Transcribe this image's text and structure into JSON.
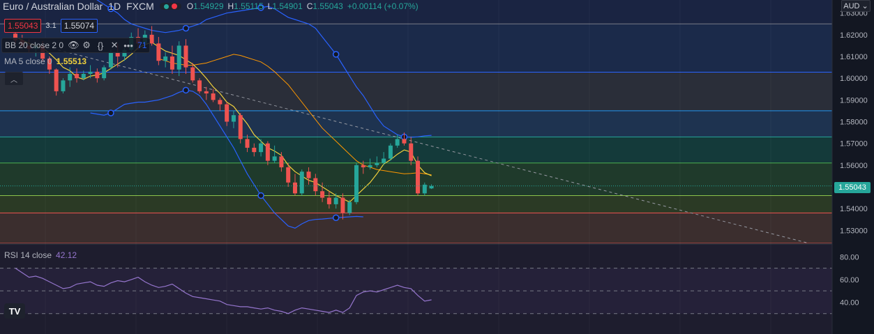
{
  "header": {
    "symbol": "Euro / Australian Dollar",
    "interval": "1D",
    "exchange": "FXCM",
    "open_label": "O",
    "open": "1.54929",
    "high_label": "H",
    "high": "1.55115",
    "low_label": "L",
    "low": "1.54901",
    "close_label": "C",
    "close": "1.55043",
    "change": "+0.00114 (+0.07%)"
  },
  "trade": {
    "sell": "1.55043",
    "spread": "3.1",
    "buy": "1.55074"
  },
  "indicators": {
    "bb": {
      "label": "BB 20 close 2 0",
      "partial_value": "71"
    },
    "ma": {
      "label": "MA 5 close 0",
      "value": "1.55513"
    },
    "rsi": {
      "label": "RSI 14 close",
      "value": "42.12"
    }
  },
  "currency": "AUD",
  "last_price": "1.55043",
  "logo_text": "TV",
  "price_axis": {
    "ticks": [
      "1.63000",
      "1.62000",
      "1.61000",
      "1.60000",
      "1.59000",
      "1.58000",
      "1.57000",
      "1.56000",
      "1.55000",
      "1.54000",
      "1.53000"
    ],
    "values": [
      1.63,
      1.62,
      1.61,
      1.6,
      1.59,
      1.58,
      1.57,
      1.56,
      1.55,
      1.54,
      1.53
    ]
  },
  "rsi_axis": {
    "ticks": [
      "80.00",
      "60.00",
      "40.00"
    ],
    "values": [
      80,
      60,
      40
    ]
  },
  "colors": {
    "up": "#26a69a",
    "down": "#ef5350",
    "bb": "#2962ff",
    "ma": "#f0d03c",
    "rsi": "#9575cd",
    "bg": "#131722"
  },
  "chart_data": {
    "type": "candlestick",
    "candles": [
      [
        1.6205,
        1.6235,
        1.616,
        1.6175
      ],
      [
        1.6175,
        1.62,
        1.614,
        1.615
      ],
      [
        1.615,
        1.618,
        1.612,
        1.6135
      ],
      [
        1.6135,
        1.6165,
        1.61,
        1.615
      ],
      [
        1.615,
        1.617,
        1.608,
        1.609
      ],
      [
        1.609,
        1.61,
        1.602,
        1.604
      ],
      [
        1.604,
        1.6045,
        1.592,
        1.594
      ],
      [
        1.594,
        1.6,
        1.593,
        1.599
      ],
      [
        1.599,
        1.605,
        1.596,
        1.602
      ],
      [
        1.602,
        1.6045,
        1.598,
        1.6
      ],
      [
        1.6,
        1.6035,
        1.599,
        1.602
      ],
      [
        1.602,
        1.606,
        1.6,
        1.603
      ],
      [
        1.603,
        1.6045,
        1.598,
        1.6
      ],
      [
        1.6,
        1.606,
        1.599,
        1.605
      ],
      [
        1.605,
        1.613,
        1.604,
        1.612
      ],
      [
        1.612,
        1.616,
        1.605,
        1.61
      ],
      [
        1.61,
        1.614,
        1.608,
        1.613
      ],
      [
        1.613,
        1.621,
        1.612,
        1.619
      ],
      [
        1.619,
        1.623,
        1.613,
        1.616
      ],
      [
        1.616,
        1.622,
        1.614,
        1.62
      ],
      [
        1.62,
        1.624,
        1.615,
        1.616
      ],
      [
        1.616,
        1.619,
        1.606,
        1.608
      ],
      [
        1.608,
        1.612,
        1.605,
        1.61
      ],
      [
        1.61,
        1.615,
        1.602,
        1.604
      ],
      [
        1.604,
        1.617,
        1.601,
        1.615
      ],
      [
        1.615,
        1.618,
        1.602,
        1.605
      ],
      [
        1.605,
        1.607,
        1.598,
        1.599
      ],
      [
        1.599,
        1.6,
        1.593,
        1.594
      ],
      [
        1.594,
        1.596,
        1.59,
        1.593
      ],
      [
        1.593,
        1.595,
        1.589,
        1.59
      ],
      [
        1.59,
        1.591,
        1.585,
        1.588
      ],
      [
        1.588,
        1.589,
        1.578,
        1.58
      ],
      [
        1.58,
        1.585,
        1.577,
        1.583
      ],
      [
        1.583,
        1.584,
        1.57,
        1.572
      ],
      [
        1.572,
        1.574,
        1.566,
        1.568
      ],
      [
        1.568,
        1.57,
        1.564,
        1.566
      ],
      [
        1.566,
        1.572,
        1.564,
        1.57
      ],
      [
        1.57,
        1.571,
        1.56,
        1.562
      ],
      [
        1.562,
        1.569,
        1.561,
        1.564
      ],
      [
        1.564,
        1.566,
        1.557,
        1.559
      ],
      [
        1.559,
        1.561,
        1.55,
        1.552
      ],
      [
        1.552,
        1.556,
        1.546,
        1.547
      ],
      [
        1.547,
        1.558,
        1.546,
        1.557
      ],
      [
        1.557,
        1.559,
        1.551,
        1.554
      ],
      [
        1.554,
        1.556,
        1.546,
        1.548
      ],
      [
        1.548,
        1.552,
        1.543,
        1.545
      ],
      [
        1.545,
        1.548,
        1.54,
        1.542
      ],
      [
        1.542,
        1.547,
        1.54,
        1.545
      ],
      [
        1.545,
        1.547,
        1.535,
        1.538
      ],
      [
        1.538,
        1.544,
        1.537,
        1.543
      ],
      [
        1.543,
        1.561,
        1.542,
        1.56
      ],
      [
        1.56,
        1.562,
        1.556,
        1.559
      ],
      [
        1.559,
        1.563,
        1.558,
        1.56
      ],
      [
        1.56,
        1.564,
        1.559,
        1.561
      ],
      [
        1.561,
        1.566,
        1.56,
        1.563
      ],
      [
        1.563,
        1.57,
        1.562,
        1.569
      ],
      [
        1.569,
        1.574,
        1.568,
        1.572
      ],
      [
        1.572,
        1.575,
        1.569,
        1.57
      ],
      [
        1.57,
        1.573,
        1.56,
        1.562
      ],
      [
        1.562,
        1.564,
        1.546,
        1.547
      ],
      [
        1.547,
        1.552,
        1.546,
        1.551
      ],
      [
        1.54929,
        1.55115,
        1.54901,
        1.55043
      ]
    ],
    "ma5": [
      1.619,
      1.6175,
      1.616,
      1.615,
      1.614,
      1.6115,
      1.6085,
      1.605,
      1.6035,
      1.6005,
      1.5995,
      1.601,
      1.6015,
      1.6025,
      1.6045,
      1.6065,
      1.6085,
      1.611,
      1.614,
      1.6155,
      1.6165,
      1.6145,
      1.6125,
      1.6115,
      1.6105,
      1.6085,
      1.6065,
      1.6035,
      1.6,
      1.596,
      1.593,
      1.589,
      1.587,
      1.583,
      1.579,
      1.574,
      1.571,
      1.568,
      1.5665,
      1.5645,
      1.56,
      1.557,
      1.555,
      1.553,
      1.552,
      1.55,
      1.548,
      1.546,
      1.5445,
      1.543,
      1.546,
      1.549,
      1.552,
      1.556,
      1.5605,
      1.5625,
      1.565,
      1.567,
      1.566,
      1.56,
      1.5565,
      1.5551
    ],
    "bb_upper": [
      1.638,
      1.636,
      1.634,
      1.632,
      1.63,
      1.627,
      1.625,
      1.624,
      1.623,
      1.622,
      1.6215,
      1.621,
      1.6215,
      1.622,
      1.623,
      1.624,
      1.625,
      1.627,
      1.628,
      1.629,
      1.63,
      1.6305,
      1.631,
      1.6315,
      1.632,
      1.6325,
      1.633,
      1.632,
      1.63,
      1.628,
      1.627,
      1.626,
      1.625,
      1.623,
      1.619,
      1.615,
      1.611,
      1.606,
      1.601,
      1.596,
      1.592,
      1.587,
      1.582,
      1.578,
      1.576,
      1.574,
      1.573,
      1.5728,
      1.573,
      1.5735,
      1.5737
    ],
    "bb_middle": [
      1.609,
      1.608,
      1.607,
      1.6065,
      1.606,
      1.606,
      1.6065,
      1.607,
      1.608,
      1.609,
      1.61,
      1.611,
      1.6105,
      1.6095,
      1.6085,
      1.6075,
      1.6055,
      1.603,
      1.6,
      1.597,
      1.593,
      1.589,
      1.585,
      1.581,
      1.577,
      1.574,
      1.571,
      1.568,
      1.565,
      1.562,
      1.56,
      1.559,
      1.558,
      1.5575,
      1.557,
      1.5565,
      1.556,
      1.5562,
      1.5565,
      1.556,
      1.5555
    ],
    "bb_lower": [
      1.584,
      1.5835,
      1.583,
      1.584,
      1.586,
      1.588,
      1.5885,
      1.589,
      1.589,
      1.5895,
      1.59,
      1.591,
      1.592,
      1.5935,
      1.5945,
      1.594,
      1.592,
      1.588,
      1.583,
      1.578,
      1.573,
      1.568,
      1.562,
      1.556,
      1.551,
      1.546,
      1.542,
      1.538,
      1.535,
      1.532,
      1.531,
      1.533,
      1.5345,
      1.535,
      1.5352,
      1.5355,
      1.5358,
      1.536,
      1.5362,
      1.5364,
      1.5362
    ],
    "rsi": [
      70,
      66,
      62,
      63,
      61,
      58,
      55,
      52,
      53,
      56,
      57,
      58,
      55,
      54,
      57,
      59,
      58,
      60,
      62,
      58,
      55,
      53,
      54,
      56,
      52,
      48,
      45,
      44,
      43,
      42,
      41,
      38,
      37,
      36,
      36,
      35,
      34,
      35,
      33,
      32,
      30,
      33,
      35,
      34,
      33,
      32,
      31,
      33,
      31,
      35,
      46,
      49,
      50,
      49,
      51,
      53,
      55,
      53,
      52,
      46,
      41,
      42.12
    ],
    "fib_levels": [
      1.625,
      1.6028,
      1.585,
      1.573,
      1.561,
      1.546,
      1.538,
      1.524
    ],
    "ylim": [
      1.524,
      1.636
    ],
    "rsi_ylim": [
      20,
      90
    ]
  }
}
